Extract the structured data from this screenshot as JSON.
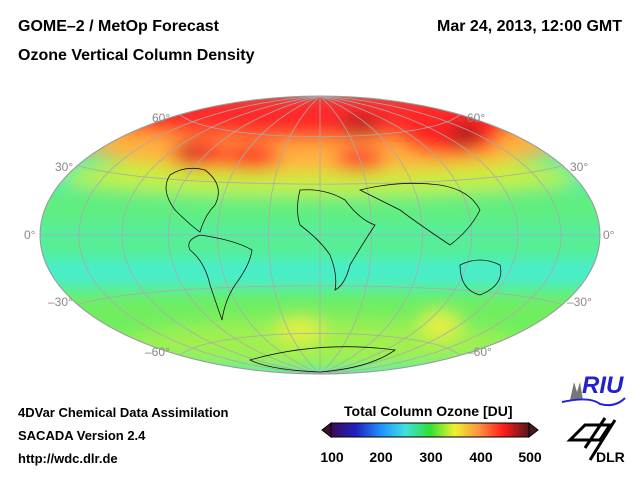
{
  "header": {
    "title_line1": "GOME–2 / MetOp Forecast",
    "title_line2": "Ozone Vertical Column Density",
    "datetime": "Mar 24, 2013, 12:00 GMT"
  },
  "map": {
    "projection": "Hammer",
    "lat_labels_left": [
      "60°",
      "30°",
      "0°",
      "–30°",
      "–60°"
    ],
    "lat_labels_right": [
      "60°",
      "30°",
      "0°",
      "–30°",
      "–60°"
    ]
  },
  "footer": {
    "line1": "4DVar Chemical Data Assimilation",
    "line2": "SACADA Version 2.4",
    "line3": "http://wdc.dlr.de"
  },
  "colorbar": {
    "title": "Total Column Ozone [DU]",
    "ticks": [
      "100",
      "200",
      "300",
      "400",
      "500"
    ],
    "range": [
      100,
      500
    ],
    "colors": [
      "#3a0a5a",
      "#2020c0",
      "#1e90ff",
      "#40e0e0",
      "#30e030",
      "#f0f030",
      "#ff9040",
      "#ff1a1a",
      "#501818"
    ]
  },
  "logos": {
    "riu": "RIU",
    "dlr": "DLR"
  }
}
